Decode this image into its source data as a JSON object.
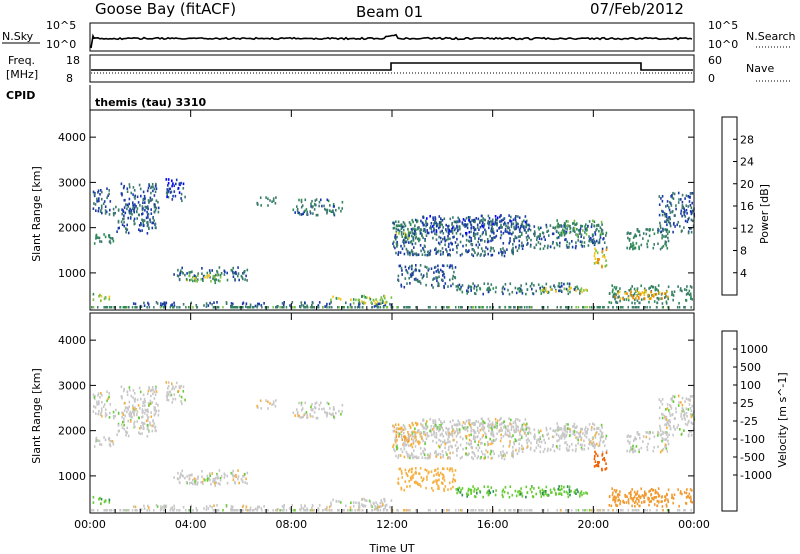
{
  "header": {
    "station": "Goose Bay (fitACF)",
    "beam": "Beam 01",
    "date": "07/Feb/2012"
  },
  "panels": {
    "nsky_label": "N.Sky",
    "nsky_ticks": [
      "10^5",
      "10^0"
    ],
    "nsearch_label": "N.Search",
    "nsearch_ticks": [
      "10^5",
      "10^0"
    ],
    "freq_label_1": "Freq.",
    "freq_label_2": "[MHz]",
    "freq_ticks": [
      "18",
      "8"
    ],
    "nave_label": "Nave",
    "nave_ticks": [
      "60",
      "0"
    ],
    "cpid_label": "CPID",
    "cpid_value": "themis (tau) 3310"
  },
  "colors": {
    "power_scale": [
      "#0000ff",
      "#1a3aa8",
      "#3d7a6e",
      "#2e8b57",
      "#7ac142",
      "#f5c518",
      "#f08a00",
      "#e04000",
      "#ff0000"
    ],
    "velocity_scale": [
      "#ff0000",
      "#f06000",
      "#f09a30",
      "#f5b040",
      "#c8c8c8",
      "#c8c8c8",
      "#66cc33",
      "#2e8b57",
      "#1a3aa8",
      "#0000ff"
    ]
  },
  "chart_data": [
    {
      "type": "heatmap",
      "name": "power",
      "xlabel": "Time UT",
      "ylabel": "Slant Range [km]",
      "x_ticks": [
        "00:00",
        "04:00",
        "08:00",
        "12:00",
        "16:00",
        "20:00",
        "00:00"
      ],
      "xlim_hours": [
        0,
        24
      ],
      "y_ticks": [
        "4000",
        "3000",
        "2000",
        "1000"
      ],
      "ylim": [
        180,
        4600
      ],
      "colorbar_label": "Power [dB]",
      "colorbar_ticks": [
        "28",
        "24",
        "20",
        "16",
        "12",
        "8",
        "4"
      ],
      "colorbar_range": [
        0,
        32
      ],
      "regions": [
        {
          "t": [
            0.0,
            0.9
          ],
          "r": [
            1650,
            1900
          ],
          "v": 12
        },
        {
          "t": [
            0.9,
            2.6
          ],
          "r": [
            1900,
            2500
          ],
          "v": 8
        },
        {
          "t": [
            0.1,
            0.8
          ],
          "r": [
            2300,
            2900
          ],
          "v": 8
        },
        {
          "t": [
            1.2,
            2.7
          ],
          "r": [
            2300,
            3000
          ],
          "v": 8
        },
        {
          "t": [
            3.0,
            3.8
          ],
          "r": [
            2600,
            3100
          ],
          "v": 6
        },
        {
          "t": [
            3.3,
            6.3
          ],
          "r": [
            850,
            1150
          ],
          "v": 10
        },
        {
          "t": [
            3.8,
            5.2
          ],
          "r": [
            800,
            980
          ],
          "v": 18
        },
        {
          "t": [
            6.6,
            7.4
          ],
          "r": [
            2500,
            2700
          ],
          "v": 12
        },
        {
          "t": [
            8.0,
            10.0
          ],
          "r": [
            2300,
            2650
          ],
          "v": 10
        },
        {
          "t": [
            0.1,
            0.9
          ],
          "r": [
            400,
            560
          ],
          "v": 18
        },
        {
          "t": [
            1.5,
            12.0
          ],
          "r": [
            280,
            380
          ],
          "v": 8
        },
        {
          "t": [
            9.5,
            12.0
          ],
          "r": [
            350,
            520
          ],
          "v": 18
        },
        {
          "t": [
            12.0,
            13.3
          ],
          "r": [
            1700,
            2200
          ],
          "v": 12
        },
        {
          "t": [
            12.1,
            12.8
          ],
          "r": [
            1800,
            2000
          ],
          "v": 18
        },
        {
          "t": [
            12.0,
            17.0
          ],
          "r": [
            1400,
            2200
          ],
          "v": 8
        },
        {
          "t": [
            13.0,
            17.5
          ],
          "r": [
            1900,
            2300
          ],
          "v": 7
        },
        {
          "t": [
            12.2,
            14.5
          ],
          "r": [
            700,
            1200
          ],
          "v": 8
        },
        {
          "t": [
            17.0,
            20.5
          ],
          "r": [
            1550,
            2100
          ],
          "v": 9
        },
        {
          "t": [
            18.5,
            20.3
          ],
          "r": [
            1850,
            2200
          ],
          "v": 14
        },
        {
          "t": [
            14.5,
            19.5
          ],
          "r": [
            550,
            800
          ],
          "v": 10
        },
        {
          "t": [
            17.8,
            19.8
          ],
          "r": [
            600,
            700
          ],
          "v": 20
        },
        {
          "t": [
            20.0,
            20.5
          ],
          "r": [
            1100,
            1600
          ],
          "v": 22
        },
        {
          "t": [
            20.6,
            23.9
          ],
          "r": [
            350,
            750
          ],
          "v": 12
        },
        {
          "t": [
            20.8,
            23.0
          ],
          "r": [
            450,
            650
          ],
          "v": 24
        },
        {
          "t": [
            21.3,
            23.0
          ],
          "r": [
            1550,
            2000
          ],
          "v": 12
        },
        {
          "t": [
            22.5,
            24.0
          ],
          "r": [
            1900,
            2800
          ],
          "v": 8
        }
      ]
    },
    {
      "type": "heatmap",
      "name": "velocity",
      "xlabel": "Time UT",
      "ylabel": "Slant Range [km]",
      "x_ticks": [
        "00:00",
        "04:00",
        "08:00",
        "12:00",
        "16:00",
        "20:00",
        "00:00"
      ],
      "xlim_hours": [
        0,
        24
      ],
      "y_ticks": [
        "4000",
        "3000",
        "2000",
        "1000"
      ],
      "ylim": [
        180,
        4600
      ],
      "colorbar_label": "Velocity [m s^-1]",
      "colorbar_ticks": [
        "1000",
        "500",
        "100",
        "25",
        "-25",
        "-100",
        "-500",
        "-1000"
      ],
      "regions": [
        {
          "t": [
            0.0,
            0.9
          ],
          "r": [
            1650,
            1900
          ],
          "v": 0
        },
        {
          "t": [
            0.9,
            2.6
          ],
          "r": [
            1900,
            2500
          ],
          "v": 0
        },
        {
          "t": [
            0.1,
            0.8
          ],
          "r": [
            2300,
            2900
          ],
          "v": 0
        },
        {
          "t": [
            1.2,
            2.7
          ],
          "r": [
            2300,
            3000
          ],
          "v": 0
        },
        {
          "t": [
            3.0,
            3.8
          ],
          "r": [
            2600,
            3100
          ],
          "v": 0
        },
        {
          "t": [
            3.3,
            6.3
          ],
          "r": [
            850,
            1150
          ],
          "v": 0
        },
        {
          "t": [
            3.8,
            5.2
          ],
          "r": [
            800,
            980
          ],
          "v": 0
        },
        {
          "t": [
            6.6,
            7.4
          ],
          "r": [
            2500,
            2700
          ],
          "v": 0
        },
        {
          "t": [
            8.0,
            10.0
          ],
          "r": [
            2300,
            2650
          ],
          "v": 0
        },
        {
          "t": [
            0.1,
            0.9
          ],
          "r": [
            400,
            560
          ],
          "v": 80
        },
        {
          "t": [
            1.5,
            12.0
          ],
          "r": [
            280,
            380
          ],
          "v": 0
        },
        {
          "t": [
            9.5,
            12.0
          ],
          "r": [
            350,
            520
          ],
          "v": 0
        },
        {
          "t": [
            12.0,
            13.3
          ],
          "r": [
            1700,
            2200
          ],
          "v": -60
        },
        {
          "t": [
            12.1,
            12.8
          ],
          "r": [
            1800,
            2000
          ],
          "v": -300
        },
        {
          "t": [
            12.0,
            17.0
          ],
          "r": [
            1400,
            2200
          ],
          "v": 0
        },
        {
          "t": [
            13.0,
            17.5
          ],
          "r": [
            1900,
            2300
          ],
          "v": 0
        },
        {
          "t": [
            12.2,
            14.5
          ],
          "r": [
            700,
            1200
          ],
          "v": -60
        },
        {
          "t": [
            17.0,
            20.5
          ],
          "r": [
            1550,
            2100
          ],
          "v": 0
        },
        {
          "t": [
            18.5,
            20.3
          ],
          "r": [
            1850,
            2200
          ],
          "v": 0
        },
        {
          "t": [
            14.5,
            19.5
          ],
          "r": [
            550,
            800
          ],
          "v": 80
        },
        {
          "t": [
            17.8,
            19.8
          ],
          "r": [
            600,
            700
          ],
          "v": 80
        },
        {
          "t": [
            20.0,
            20.5
          ],
          "r": [
            1100,
            1600
          ],
          "v": -800
        },
        {
          "t": [
            20.6,
            23.9
          ],
          "r": [
            350,
            750
          ],
          "v": -300
        },
        {
          "t": [
            20.8,
            23.0
          ],
          "r": [
            450,
            650
          ],
          "v": -300
        },
        {
          "t": [
            21.3,
            23.0
          ],
          "r": [
            1550,
            2000
          ],
          "v": 0
        },
        {
          "t": [
            22.5,
            24.0
          ],
          "r": [
            1900,
            2800
          ],
          "v": 0
        }
      ]
    }
  ]
}
